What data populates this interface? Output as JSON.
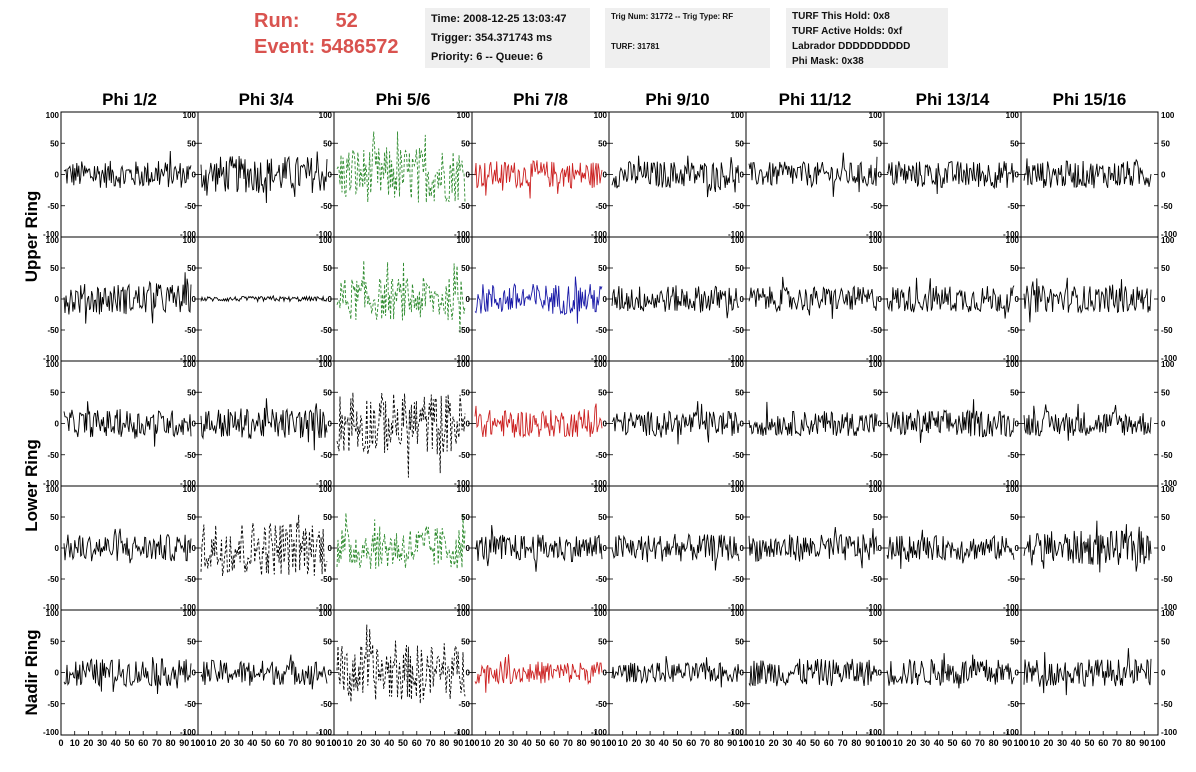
{
  "header": {
    "run_label": "Run:",
    "run_value": "52",
    "event_label": "Event:",
    "event_value": "5486572",
    "time": "Time: 2008-12-25 13:03:47",
    "trigger": "Trigger: 354.371743 ms",
    "priority": "Priority: 6 -- Queue: 6",
    "trig_num": "Trig Num: 31772 -- Trig Type: RF",
    "turf": "TURF: 31781",
    "turf_this_hold": "TURF This Hold: 0x8",
    "turf_active_holds": "TURF Active Holds: 0xf",
    "labrador": "Labrador DDDDDDDDDD",
    "phi_mask": "Phi Mask: 0x38",
    "run_color": "#d9534f"
  },
  "chart_data": {
    "type": "line",
    "columns": [
      "Phi 1/2",
      "Phi 3/4",
      "Phi 5/6",
      "Phi 7/8",
      "Phi 9/10",
      "Phi 11/12",
      "Phi 13/14",
      "Phi 15/16"
    ],
    "ring_labels": [
      {
        "label": "Upper Ring",
        "rows": [
          0,
          1
        ]
      },
      {
        "label": "Lower Ring",
        "rows": [
          2,
          3
        ]
      },
      {
        "label": "Nadir Ring",
        "rows": [
          4
        ]
      }
    ],
    "xlim": [
      0,
      100
    ],
    "ylim": [
      -100,
      100
    ],
    "x_ticks": [
      "0",
      "10",
      "20",
      "30",
      "40",
      "50",
      "60",
      "70",
      "80",
      "90",
      "100"
    ],
    "y_ticks": [
      "-100",
      "-50",
      "0",
      "50",
      "100"
    ],
    "colors": {
      "normal": "#000000",
      "green": "#2e8b2e",
      "red": "#cc2222",
      "blue": "#1a1aa8"
    },
    "panels": [
      [
        {
          "amp": 22,
          "style": "normal"
        },
        {
          "amp": 30,
          "style": "normal"
        },
        {
          "amp": 45,
          "style": "green"
        },
        {
          "amp": 22,
          "style": "red"
        },
        {
          "amp": 22,
          "style": "normal"
        },
        {
          "amp": 20,
          "style": "normal"
        },
        {
          "amp": 22,
          "style": "normal"
        },
        {
          "amp": 22,
          "style": "normal"
        }
      ],
      [
        {
          "amp": 25,
          "style": "normal"
        },
        {
          "amp": 4,
          "style": "normal"
        },
        {
          "amp": 35,
          "style": "green"
        },
        {
          "amp": 25,
          "style": "blue"
        },
        {
          "amp": 22,
          "style": "normal"
        },
        {
          "amp": 20,
          "style": "normal"
        },
        {
          "amp": 22,
          "style": "normal"
        },
        {
          "amp": 22,
          "style": "normal"
        }
      ],
      [
        {
          "amp": 22,
          "style": "normal"
        },
        {
          "amp": 25,
          "style": "normal"
        },
        {
          "amp": 50,
          "style": "dashed"
        },
        {
          "amp": 22,
          "style": "red"
        },
        {
          "amp": 20,
          "style": "normal"
        },
        {
          "amp": 20,
          "style": "normal"
        },
        {
          "amp": 22,
          "style": "normal"
        },
        {
          "amp": 20,
          "style": "normal"
        }
      ],
      [
        {
          "amp": 22,
          "style": "normal"
        },
        {
          "amp": 45,
          "style": "dashed"
        },
        {
          "amp": 35,
          "style": "green"
        },
        {
          "amp": 22,
          "style": "normal"
        },
        {
          "amp": 22,
          "style": "normal"
        },
        {
          "amp": 22,
          "style": "normal"
        },
        {
          "amp": 20,
          "style": "normal"
        },
        {
          "amp": 28,
          "style": "normal"
        }
      ],
      [
        {
          "amp": 22,
          "style": "normal"
        },
        {
          "amp": 20,
          "style": "normal"
        },
        {
          "amp": 45,
          "style": "dashed"
        },
        {
          "amp": 18,
          "style": "red"
        },
        {
          "amp": 16,
          "style": "normal"
        },
        {
          "amp": 22,
          "style": "normal"
        },
        {
          "amp": 22,
          "style": "normal"
        },
        {
          "amp": 22,
          "style": "normal"
        }
      ]
    ]
  }
}
